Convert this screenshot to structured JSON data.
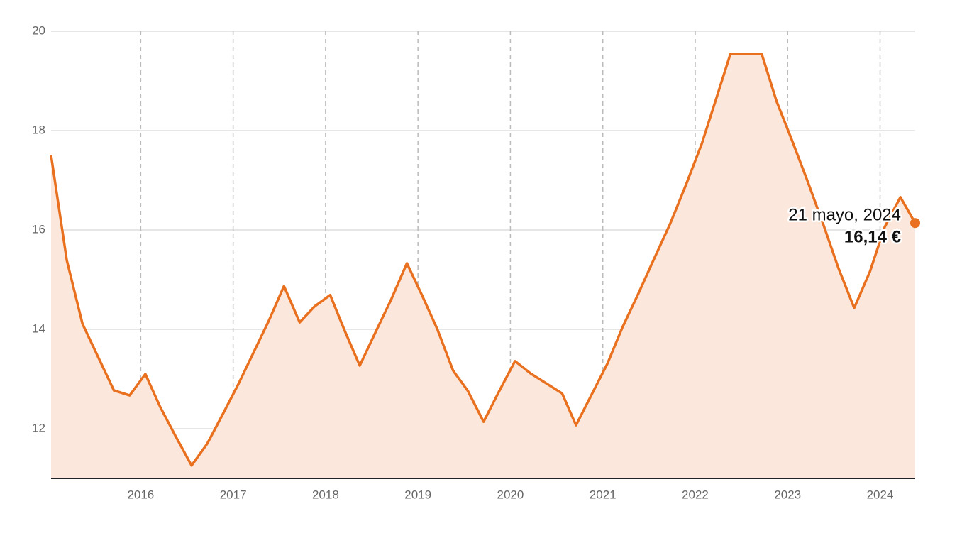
{
  "chart_data": {
    "type": "area-line",
    "x": [
      2015.03,
      2015.2,
      2015.37,
      2015.54,
      2015.71,
      2015.88,
      2016.05,
      2016.21,
      2016.38,
      2016.55,
      2016.72,
      2016.89,
      2017.06,
      2017.22,
      2017.39,
      2017.55,
      2017.72,
      2017.88,
      2018.05,
      2018.21,
      2018.37,
      2018.54,
      2018.71,
      2018.88,
      2019.05,
      2019.21,
      2019.38,
      2019.54,
      2019.71,
      2019.88,
      2020.05,
      2020.22,
      2020.39,
      2020.56,
      2020.71,
      2020.88,
      2021.05,
      2021.21,
      2021.38,
      2021.55,
      2021.73,
      2021.9,
      2022.07,
      2022.23,
      2022.38,
      2022.55,
      2022.72,
      2022.88,
      2023.05,
      2023.22,
      2023.39,
      2023.55,
      2023.72,
      2023.89,
      2024.05,
      2024.22,
      2024.38
    ],
    "series": [
      {
        "color": "#e8701f",
        "fill": "#fbe7db",
        "values": [
          17.5,
          15.39,
          14.11,
          13.44,
          12.77,
          12.67,
          13.1,
          12.44,
          11.84,
          11.26,
          11.7,
          12.3,
          12.91,
          13.53,
          14.19,
          14.87,
          14.14,
          14.46,
          14.69,
          13.96,
          13.27,
          13.94,
          14.6,
          15.33,
          14.66,
          14.0,
          13.17,
          12.76,
          12.14,
          12.76,
          13.36,
          13.11,
          12.91,
          12.71,
          12.07,
          12.69,
          13.31,
          14.03,
          14.7,
          15.4,
          16.13,
          16.91,
          17.73,
          18.66,
          19.54,
          19.54,
          19.54,
          18.59,
          17.79,
          16.96,
          16.09,
          15.23,
          14.43,
          15.16,
          16.06,
          16.66,
          16.14
        ]
      }
    ],
    "xlim": [
      2015.03,
      2024.38
    ],
    "xticks": [
      2016,
      2017,
      2018,
      2019,
      2020,
      2021,
      2022,
      2023,
      2024
    ],
    "ylim": [
      11,
      20
    ],
    "yticks": [
      12,
      14,
      16,
      18,
      20
    ],
    "grid": true,
    "annotation": {
      "x": 2024.38,
      "y": 16.14,
      "date": "21 mayo, 2024",
      "label": "16,14 €"
    }
  }
}
